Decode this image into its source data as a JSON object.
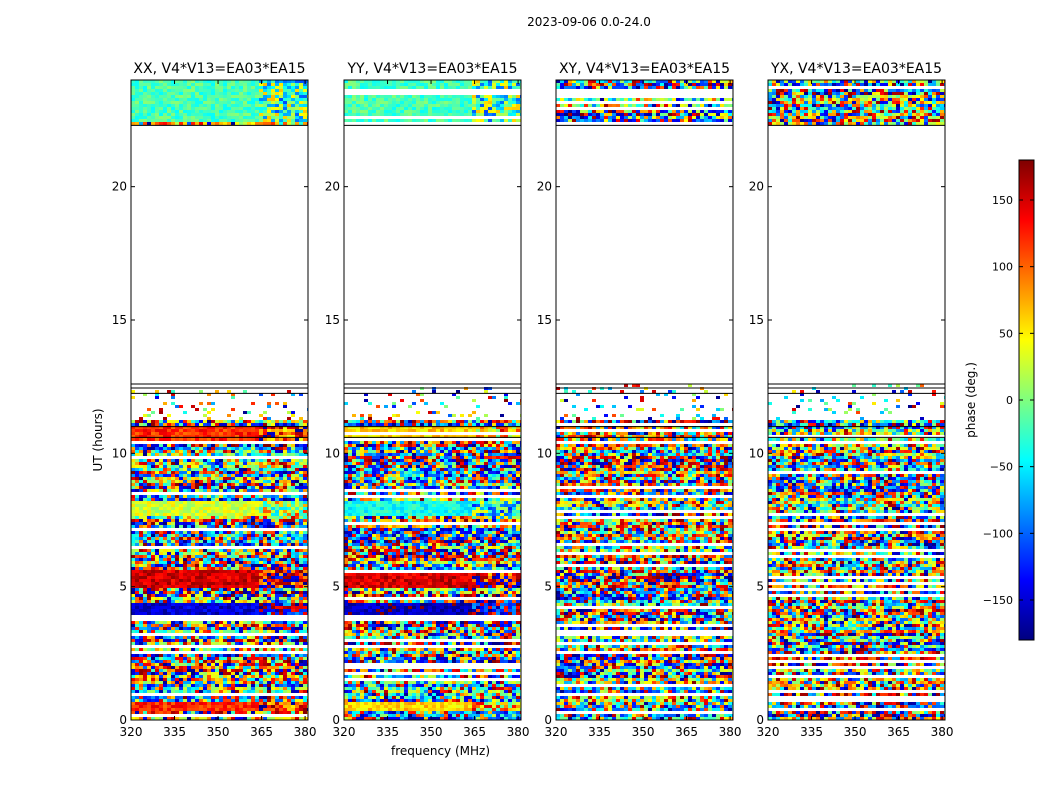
{
  "figure_title": "2023-09-06 0.0-24.0",
  "xlabel": "frequency (MHz)",
  "ylabel": "UT (hours)",
  "colorbar": {
    "label": "phase (deg.)",
    "range": [
      -180,
      180
    ],
    "ticks": [
      150,
      100,
      50,
      0,
      -50,
      -100,
      -150
    ],
    "tick_labels": [
      "150",
      "100",
      "50",
      "0",
      "−50",
      "−100",
      "−150"
    ],
    "colormap": "jet",
    "stops": [
      "#00007f",
      "#0000ff",
      "#007fff",
      "#00ffff",
      "#7fff7f",
      "#ffff00",
      "#ff7f00",
      "#ff0000",
      "#7f0000"
    ]
  },
  "chart_data": [
    {
      "type": "heatmap",
      "title": "XX, V4*V13=EA03*EA15",
      "xlim": [
        320,
        381
      ],
      "ylim": [
        0,
        24
      ],
      "x_ticks": [
        320,
        335,
        350,
        365,
        380
      ],
      "x_tick_labels": [
        "320",
        "335",
        "350",
        "365",
        "380"
      ],
      "y_ticks": [
        0,
        5,
        10,
        15,
        20
      ],
      "y_tick_labels": [
        "0",
        "5",
        "10",
        "15",
        "20"
      ],
      "show_y_label": true,
      "show_x_label": false,
      "data_ranges_hours": [
        [
          0,
          12.6
        ],
        [
          22.3,
          24
        ]
      ],
      "coherent_bands": [
        {
          "t0": 22.4,
          "t1": 24.0,
          "phase": -20
        },
        {
          "t0": 10.5,
          "t1": 11.0,
          "phase": 120
        },
        {
          "t0": 7.6,
          "t1": 8.2,
          "phase": 30
        },
        {
          "t0": 5.0,
          "t1": 5.6,
          "phase": 150
        },
        {
          "t0": 3.9,
          "t1": 4.4,
          "phase": -150
        },
        {
          "t0": 0.3,
          "t1": 0.7,
          "phase": 120
        }
      ]
    },
    {
      "type": "heatmap",
      "title": "YY, V4*V13=EA03*EA15",
      "xlim": [
        320,
        381
      ],
      "ylim": [
        0,
        24
      ],
      "x_ticks": [
        320,
        335,
        350,
        365,
        380
      ],
      "x_tick_labels": [
        "320",
        "335",
        "350",
        "365",
        "380"
      ],
      "y_ticks": [
        0,
        5,
        10,
        15,
        20
      ],
      "y_tick_labels": [
        "0",
        "5",
        "10",
        "15",
        "20"
      ],
      "show_y_label": false,
      "show_x_label": true,
      "data_ranges_hours": [
        [
          0,
          12.6
        ],
        [
          22.3,
          24
        ]
      ],
      "coherent_bands": [
        {
          "t0": 22.4,
          "t1": 24.0,
          "phase": -20
        },
        {
          "t0": 10.5,
          "t1": 11.0,
          "phase": 60
        },
        {
          "t0": 7.6,
          "t1": 8.2,
          "phase": -40
        },
        {
          "t0": 5.0,
          "t1": 5.6,
          "phase": 150
        },
        {
          "t0": 3.9,
          "t1": 4.4,
          "phase": -160
        },
        {
          "t0": 0.3,
          "t1": 0.7,
          "phase": 60
        }
      ]
    },
    {
      "type": "heatmap",
      "title": "XY, V4*V13=EA03*EA15",
      "xlim": [
        320,
        381
      ],
      "ylim": [
        0,
        24
      ],
      "x_ticks": [
        320,
        335,
        350,
        365,
        380
      ],
      "x_tick_labels": [
        "320",
        "335",
        "350",
        "365",
        "380"
      ],
      "y_ticks": [
        0,
        5,
        10,
        15,
        20
      ],
      "y_tick_labels": [
        "0",
        "5",
        "10",
        "15",
        "20"
      ],
      "show_y_label": false,
      "show_x_label": false,
      "data_ranges_hours": [
        [
          0,
          12.6
        ],
        [
          22.3,
          24
        ]
      ],
      "coherent_bands": []
    },
    {
      "type": "heatmap",
      "title": "YX, V4*V13=EA03*EA15",
      "xlim": [
        320,
        381
      ],
      "ylim": [
        0,
        24
      ],
      "x_ticks": [
        320,
        335,
        350,
        365,
        380
      ],
      "x_tick_labels": [
        "320",
        "335",
        "350",
        "365",
        "380"
      ],
      "y_ticks": [
        0,
        5,
        10,
        15,
        20
      ],
      "y_tick_labels": [
        "0",
        "5",
        "10",
        "15",
        "20"
      ],
      "show_y_label": false,
      "show_x_label": false,
      "data_ranges_hours": [
        [
          0,
          12.6
        ],
        [
          22.3,
          24
        ]
      ],
      "coherent_bands": []
    }
  ]
}
